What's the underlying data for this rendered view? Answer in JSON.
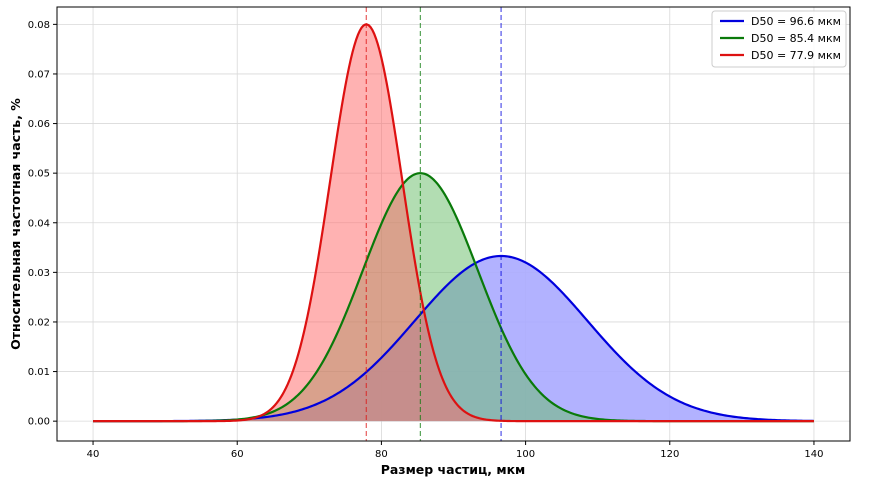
{
  "chart_data": {
    "type": "line",
    "title": "",
    "xlabel": "Размер частиц, мкм",
    "ylabel": "Относительная частотная часть, %",
    "xlim": [
      35,
      145
    ],
    "ylim": [
      -0.004,
      0.0835
    ],
    "x_ticks": [
      40,
      60,
      80,
      100,
      120,
      140
    ],
    "y_ticks": [
      0.0,
      0.01,
      0.02,
      0.03,
      0.04,
      0.05,
      0.06,
      0.07,
      0.08
    ],
    "x_tick_labels": [
      "40",
      "60",
      "80",
      "100",
      "120",
      "140"
    ],
    "y_tick_labels": [
      "0.00",
      "0.01",
      "0.02",
      "0.03",
      "0.04",
      "0.05",
      "0.06",
      "0.07",
      "0.08"
    ],
    "grid": true,
    "legend_position": "top-right",
    "x_range": [
      40,
      140
    ],
    "series": [
      {
        "name": "D50 = 96.6 мкм",
        "d50": 96.6,
        "peak": 0.0333,
        "sigma": 12.0,
        "color": "#0000dd",
        "fill": "#aaaaff",
        "fill_opacity": 0.9
      },
      {
        "name": "D50 = 85.4 мкм",
        "d50": 85.4,
        "peak": 0.05,
        "sigma": 8.0,
        "color": "#0a7a0a",
        "fill": "#66bb66",
        "fill_opacity": 0.5
      },
      {
        "name": "D50 = 77.9 мкм",
        "d50": 77.9,
        "peak": 0.08,
        "sigma": 5.0,
        "color": "#dd1111",
        "fill": "#ff6666",
        "fill_opacity": 0.5
      }
    ]
  }
}
